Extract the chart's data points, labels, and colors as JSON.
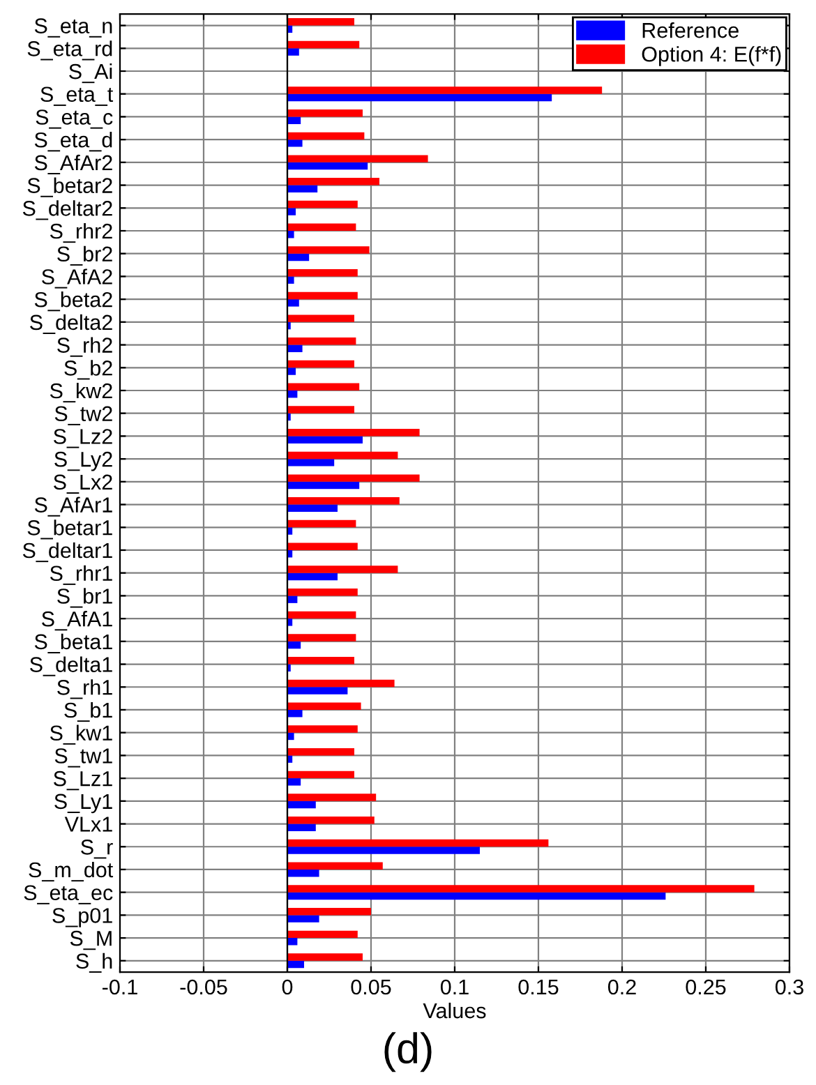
{
  "chart_data": {
    "type": "bar",
    "orientation": "horizontal",
    "xlabel": "Values",
    "annotations": [
      "(d)"
    ],
    "categories": [
      "S_eta_n",
      "S_eta_rd",
      "S_Ai",
      "S_eta_t",
      "S_eta_c",
      "S_eta_d",
      "S_AfAr2",
      "S_betar2",
      "S_deltar2",
      "S_rhr2",
      "S_br2",
      "S_AfA2",
      "S_beta2",
      "S_delta2",
      "S_rh2",
      "S_b2",
      "S_kw2",
      "S_tw2",
      "S_Lz2",
      "S_Ly2",
      "S_Lx2",
      "S_AfAr1",
      "S_betar1",
      "S_deltar1",
      "S_rhr1",
      "S_br1",
      "S_AfA1",
      "S_beta1",
      "S_delta1",
      "S_rh1",
      "S_b1",
      "S_kw1",
      "S_tw1",
      "S_Lz1",
      "S_Ly1",
      "VLx1",
      "S_r",
      "S_m_dot",
      "S_eta_ec",
      "S_p01",
      "S_M",
      "S_h"
    ],
    "series": [
      {
        "name": "Reference",
        "color": "#0000ff",
        "values": [
          0.003,
          0.007,
          null,
          0.158,
          0.008,
          0.009,
          0.048,
          0.018,
          0.005,
          0.004,
          0.013,
          0.004,
          0.007,
          0.002,
          0.009,
          0.005,
          0.006,
          0.002,
          0.045,
          0.028,
          0.043,
          0.03,
          0.003,
          0.003,
          0.03,
          0.006,
          0.003,
          0.008,
          0.002,
          0.036,
          0.009,
          0.004,
          0.003,
          0.008,
          0.017,
          0.017,
          0.115,
          0.019,
          0.226,
          0.019,
          0.006,
          0.01
        ]
      },
      {
        "name": "Option 4: E(f*f)",
        "color": "#ff0000",
        "values": [
          0.04,
          0.043,
          null,
          0.188,
          0.045,
          0.046,
          0.084,
          0.055,
          0.042,
          0.041,
          0.049,
          0.042,
          0.042,
          0.04,
          0.041,
          0.04,
          0.043,
          0.04,
          0.079,
          0.066,
          0.079,
          0.067,
          0.041,
          0.042,
          0.066,
          0.042,
          0.041,
          0.041,
          0.04,
          0.064,
          0.044,
          0.042,
          0.04,
          0.04,
          0.053,
          0.052,
          0.156,
          0.057,
          0.279,
          0.05,
          0.042,
          0.045
        ]
      }
    ],
    "xlim": [
      -0.1,
      0.3
    ],
    "xticks": [
      -0.1,
      -0.05,
      0,
      0.05,
      0.1,
      0.15,
      0.2,
      0.25,
      0.3
    ],
    "grid": true,
    "legend": "top right"
  }
}
